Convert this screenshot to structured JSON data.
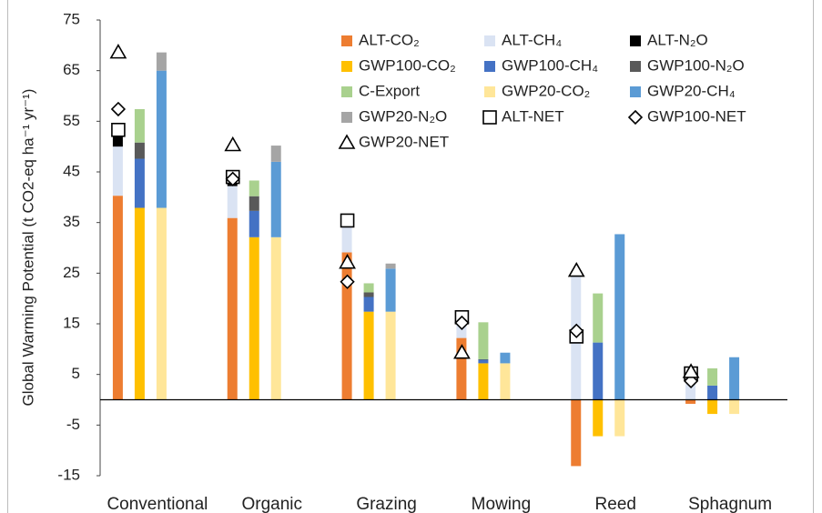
{
  "chart_data": {
    "type": "bar",
    "y_label": "Global Warming Potential (t CO2-eq ha⁻¹ yr⁻¹)",
    "categories": [
      "Conventional",
      "Organic",
      "Grazing",
      "Mowing",
      "Reed",
      "Sphagnum"
    ],
    "ylim": [
      -15,
      75
    ],
    "yticks": [
      -15,
      -5,
      5,
      15,
      25,
      35,
      45,
      55,
      65,
      75
    ],
    "series": [
      {
        "name": "ALT-CO₂",
        "color": "#ED7D31",
        "values": [
          40.3,
          35.9,
          29.1,
          12.2,
          -13.1,
          -0.8
        ]
      },
      {
        "name": "ALT-CH₄",
        "color": "#DAE3F3",
        "values": [
          9.7,
          6.3,
          6.3,
          4.1,
          25.5,
          5.0
        ]
      },
      {
        "name": "ALT-N₂O",
        "color": "#000000",
        "values": [
          2.5,
          1.8,
          0,
          0,
          0,
          0
        ]
      },
      {
        "name": "GWP100-CO₂",
        "color": "#FFC000",
        "values": [
          37.9,
          32.1,
          17.4,
          7.2,
          -7.2,
          -2.8
        ]
      },
      {
        "name": "GWP100-CH₄",
        "color": "#4472C4",
        "values": [
          9.7,
          5.2,
          2.9,
          0.7,
          11.3,
          2.8
        ]
      },
      {
        "name": "GWP100-N₂O",
        "color": "#595959",
        "values": [
          3.2,
          2.9,
          0.9,
          0.1,
          0,
          0
        ]
      },
      {
        "name": "C-Export",
        "color": "#A9D18E",
        "values": [
          6.6,
          3.1,
          1.8,
          7.3,
          9.7,
          3.4
        ]
      },
      {
        "name": "GWP20-CO₂",
        "color": "#FFE699",
        "values": [
          37.9,
          32.1,
          17.4,
          7.2,
          -7.2,
          -2.8
        ]
      },
      {
        "name": "GWP20-CH₄",
        "color": "#5B9BD5",
        "values": [
          27.1,
          14.9,
          8.5,
          2.1,
          32.7,
          8.4
        ]
      },
      {
        "name": "GWP20-N₂O",
        "color": "#A5A5A5",
        "values": [
          3.6,
          3.2,
          1.0,
          0,
          0,
          0
        ]
      },
      {
        "name": "ALT-NET",
        "color": "#000000",
        "marker": "square",
        "values": [
          53.3,
          44.0,
          35.4,
          16.3,
          12.5,
          5.2
        ]
      },
      {
        "name": "GWP100-NET",
        "color": "#000000",
        "marker": "diamond",
        "values": [
          57.4,
          43.6,
          23.3,
          15.2,
          13.6,
          3.7
        ]
      },
      {
        "name": "GWP20-NET",
        "color": "#000000",
        "marker": "triangle",
        "values": [
          68.6,
          50.3,
          27.1,
          9.3,
          25.5,
          5.5
        ]
      }
    ]
  }
}
